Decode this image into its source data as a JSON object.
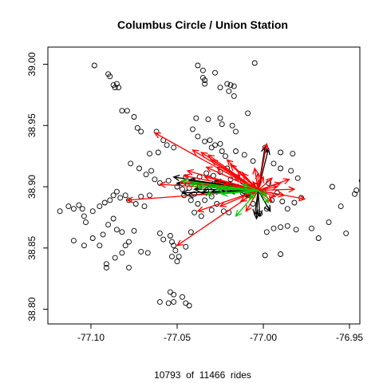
{
  "chart_data": {
    "type": "scatter",
    "title": "Columbus Circle / Union Station",
    "caption": "10793  of  11466  rides",
    "xlabel": "",
    "ylabel": "",
    "xlim": [
      -77.125,
      -76.944
    ],
    "ylim": [
      38.788,
      39.014
    ],
    "x_ticks": [
      -77.1,
      -77.05,
      -77.0,
      -76.95
    ],
    "x_tick_labels": [
      "-77.10",
      "-77.05",
      "-77.00",
      "-76.95"
    ],
    "y_ticks": [
      38.8,
      38.85,
      38.9,
      38.95,
      39.0
    ],
    "y_tick_labels": [
      "38.80",
      "38.85",
      "38.90",
      "38.95",
      "39.00"
    ],
    "grid": false,
    "legend": "none",
    "origin": {
      "x": -77.003,
      "y": 38.897
    },
    "colors": {
      "stations": "#000000",
      "black_arrows": "#000000",
      "red_arrows": "#ff0000",
      "green_arrows": "#00cc00",
      "frame": "#000000"
    },
    "stations": [
      [
        -77.098,
        38.999
      ],
      [
        -77.09,
        38.992
      ],
      [
        -77.089,
        38.99
      ],
      [
        -77.087,
        38.983
      ],
      [
        -77.086,
        38.981
      ],
      [
        -77.085,
        38.984
      ],
      [
        -77.084,
        38.981
      ],
      [
        -77.082,
        38.962
      ],
      [
        -77.079,
        38.962
      ],
      [
        -77.075,
        38.957
      ],
      [
        -77.073,
        38.948
      ],
      [
        -77.071,
        38.945
      ],
      [
        -77.038,
        38.999
      ],
      [
        -77.035,
        38.995
      ],
      [
        -77.035,
        38.989
      ],
      [
        -77.034,
        38.987
      ],
      [
        -77.034,
        38.984
      ],
      [
        -77.028,
        38.993
      ],
      [
        -77.025,
        38.981
      ],
      [
        -77.021,
        38.984
      ],
      [
        -77.019,
        38.983
      ],
      [
        -77.017,
        38.982
      ],
      [
        -77.005,
        39.001
      ],
      [
        -77.02,
        38.978
      ],
      [
        -77.017,
        38.974
      ],
      [
        -77.039,
        38.956
      ],
      [
        -77.032,
        38.955
      ],
      [
        -77.025,
        38.956
      ],
      [
        -77.024,
        38.951
      ],
      [
        -77.018,
        38.95
      ],
      [
        -77.016,
        38.945
      ],
      [
        -77.009,
        38.96
      ],
      [
        -77.062,
        38.945
      ],
      [
        -77.058,
        38.938
      ],
      [
        -77.056,
        38.934
      ],
      [
        -77.052,
        38.932
      ],
      [
        -77.066,
        38.927
      ],
      [
        -77.061,
        38.928
      ],
      [
        -77.041,
        38.947
      ],
      [
        -77.038,
        38.941
      ],
      [
        -77.034,
        38.937
      ],
      [
        -77.031,
        38.938
      ],
      [
        -77.028,
        38.934
      ],
      [
        -77.03,
        38.932
      ],
      [
        -77.025,
        38.935
      ],
      [
        -77.024,
        38.929
      ],
      [
        -77.022,
        38.925
      ],
      [
        -77.016,
        38.929
      ],
      [
        -77.011,
        38.926
      ],
      [
        -77.006,
        38.921
      ],
      [
        -76.999,
        38.932
      ],
      [
        -76.99,
        38.928
      ],
      [
        -76.983,
        38.927
      ],
      [
        -76.994,
        38.919
      ],
      [
        -76.99,
        38.915
      ],
      [
        -76.984,
        38.913
      ],
      [
        -76.98,
        38.907
      ],
      [
        -77.077,
        38.919
      ],
      [
        -77.072,
        38.915
      ],
      [
        -77.068,
        38.91
      ],
      [
        -77.065,
        38.913
      ],
      [
        -77.063,
        38.906
      ],
      [
        -77.06,
        38.903
      ],
      [
        -77.055,
        38.905
      ],
      [
        -77.05,
        38.9
      ],
      [
        -77.047,
        38.898
      ],
      [
        -77.043,
        38.899
      ],
      [
        -77.04,
        38.894
      ],
      [
        -77.037,
        38.9
      ],
      [
        -77.033,
        38.897
      ],
      [
        -77.029,
        38.902
      ],
      [
        -77.026,
        38.903
      ],
      [
        -77.022,
        38.898
      ],
      [
        -77.019,
        38.906
      ],
      [
        -77.015,
        38.9
      ],
      [
        -77.012,
        38.904
      ],
      [
        -77.009,
        38.893
      ],
      [
        -77.006,
        38.886
      ],
      [
        -77.002,
        38.878
      ],
      [
        -76.998,
        38.882
      ],
      [
        -76.995,
        38.889
      ],
      [
        -76.992,
        38.895
      ],
      [
        -76.989,
        38.888
      ],
      [
        -76.986,
        38.882
      ],
      [
        -76.982,
        38.887
      ],
      [
        -76.978,
        38.891
      ],
      [
        -76.96,
        38.9
      ],
      [
        -76.955,
        38.884
      ],
      [
        -76.952,
        38.862
      ],
      [
        -76.962,
        38.871
      ],
      [
        -76.968,
        38.858
      ],
      [
        -76.947,
        38.894
      ],
      [
        -76.946,
        38.897
      ],
      [
        -76.943,
        38.905
      ],
      [
        -76.972,
        38.866
      ],
      [
        -77.118,
        38.88
      ],
      [
        -77.113,
        38.884
      ],
      [
        -77.11,
        38.882
      ],
      [
        -77.107,
        38.885
      ],
      [
        -77.105,
        38.882
      ],
      [
        -77.104,
        38.876
      ],
      [
        -77.103,
        38.871
      ],
      [
        -77.099,
        38.88
      ],
      [
        -77.095,
        38.884
      ],
      [
        -77.092,
        38.887
      ],
      [
        -77.089,
        38.889
      ],
      [
        -77.087,
        38.893
      ],
      [
        -77.085,
        38.896
      ],
      [
        -77.083,
        38.891
      ],
      [
        -77.08,
        38.893
      ],
      [
        -77.078,
        38.889
      ],
      [
        -77.074,
        38.886
      ],
      [
        -77.071,
        38.892
      ],
      [
        -77.069,
        38.884
      ],
      [
        -77.066,
        38.893
      ],
      [
        -77.11,
        38.856
      ],
      [
        -77.104,
        38.852
      ],
      [
        -77.099,
        38.858
      ],
      [
        -77.095,
        38.852
      ],
      [
        -77.093,
        38.861
      ],
      [
        -77.09,
        38.869
      ],
      [
        -77.087,
        38.874
      ],
      [
        -77.085,
        38.865
      ],
      [
        -77.082,
        38.863
      ],
      [
        -77.08,
        38.852
      ],
      [
        -77.078,
        38.855
      ],
      [
        -77.075,
        38.864
      ],
      [
        -77.071,
        38.847
      ],
      [
        -77.067,
        38.846
      ],
      [
        -77.091,
        38.837
      ],
      [
        -77.091,
        38.834
      ],
      [
        -77.086,
        38.842
      ],
      [
        -77.082,
        38.846
      ],
      [
        -77.078,
        38.834
      ],
      [
        -77.06,
        38.862
      ],
      [
        -77.058,
        38.857
      ],
      [
        -77.054,
        38.86
      ],
      [
        -77.053,
        38.855
      ],
      [
        -77.052,
        38.852
      ],
      [
        -77.051,
        38.848
      ],
      [
        -77.053,
        38.843
      ],
      [
        -77.05,
        38.839
      ],
      [
        -77.049,
        38.843
      ],
      [
        -77.045,
        38.851
      ],
      [
        -77.042,
        38.863
      ],
      [
        -77.054,
        38.814
      ],
      [
        -77.052,
        38.812
      ],
      [
        -77.047,
        38.81
      ],
      [
        -77.045,
        38.805
      ],
      [
        -77.043,
        38.803
      ],
      [
        -77.055,
        38.805
      ],
      [
        -77.06,
        38.806
      ],
      [
        -77.052,
        38.806
      ],
      [
        -77.04,
        38.879
      ],
      [
        -77.036,
        38.876
      ],
      [
        -77.03,
        38.881
      ],
      [
        -77.027,
        38.886
      ],
      [
        -77.023,
        38.88
      ],
      [
        -77.02,
        38.879
      ],
      [
        -76.998,
        38.863
      ],
      [
        -76.994,
        38.866
      ],
      [
        -76.99,
        38.867
      ],
      [
        -76.986,
        38.868
      ],
      [
        -76.981,
        38.865
      ],
      [
        -76.999,
        38.844
      ],
      [
        -76.99,
        38.845
      ],
      [
        -77.012,
        38.895
      ],
      [
        -77.008,
        38.897
      ],
      [
        -77.004,
        38.901
      ],
      [
        -77.0,
        38.896
      ],
      [
        -76.997,
        38.903
      ],
      [
        -77.015,
        38.907
      ],
      [
        -77.045,
        38.908
      ],
      [
        -77.041,
        38.905
      ],
      [
        -77.037,
        38.908
      ],
      [
        -77.033,
        38.911
      ],
      [
        -77.029,
        38.909
      ],
      [
        -77.025,
        38.912
      ],
      [
        -77.021,
        38.915
      ],
      [
        -77.046,
        38.893
      ],
      [
        -77.042,
        38.889
      ],
      [
        -77.038,
        38.886
      ],
      [
        -77.034,
        38.889
      ],
      [
        -77.03,
        38.892
      ]
    ],
    "red_trips": [
      [
        -77.063,
        38.944
      ],
      [
        -77.06,
        38.902
      ],
      [
        -77.05,
        38.852
      ],
      [
        -77.079,
        38.889
      ],
      [
        -77.038,
        38.88
      ],
      [
        -77.041,
        38.93
      ],
      [
        -76.998,
        38.935
      ],
      [
        -76.976,
        38.89
      ],
      [
        -76.985,
        38.906
      ],
      [
        -76.988,
        38.893
      ],
      [
        -76.982,
        38.898
      ],
      [
        -77.025,
        38.884
      ],
      [
        -77.023,
        38.902
      ],
      [
        -77.027,
        38.916
      ],
      [
        -77.03,
        38.922
      ],
      [
        -77.032,
        38.926
      ],
      [
        -77.036,
        38.928
      ],
      [
        -77.019,
        38.918
      ],
      [
        -77.017,
        38.91
      ],
      [
        -77.015,
        38.913
      ],
      [
        -77.012,
        38.911
      ],
      [
        -77.005,
        38.915
      ],
      [
        -77.006,
        38.904
      ],
      [
        -77.013,
        38.888
      ],
      [
        -77.01,
        38.88
      ],
      [
        -76.995,
        38.888
      ],
      [
        -76.993,
        38.892
      ],
      [
        -76.992,
        38.9
      ],
      [
        -76.99,
        38.903
      ],
      [
        -76.995,
        38.907
      ],
      [
        -77.0,
        38.908
      ],
      [
        -77.003,
        38.911
      ],
      [
        -77.048,
        38.904
      ],
      [
        -77.046,
        38.909
      ],
      [
        -77.044,
        38.913
      ],
      [
        -77.034,
        38.908
      ],
      [
        -77.033,
        38.916
      ],
      [
        -77.021,
        38.922
      ]
    ],
    "black_trips": [
      [
        -77.052,
        38.908
      ],
      [
        -77.05,
        38.903
      ],
      [
        -77.047,
        38.895
      ],
      [
        -77.044,
        38.893
      ],
      [
        -77.04,
        38.898
      ],
      [
        -77.036,
        38.895
      ],
      [
        -77.033,
        38.901
      ],
      [
        -77.03,
        38.896
      ],
      [
        -77.026,
        38.899
      ],
      [
        -77.022,
        38.903
      ],
      [
        -77.018,
        38.9
      ],
      [
        -77.014,
        38.896
      ],
      [
        -77.01,
        38.892
      ],
      [
        -77.005,
        38.877
      ],
      [
        -77.004,
        38.874
      ],
      [
        -76.999,
        38.933
      ],
      [
        -76.997,
        38.931
      ],
      [
        -76.996,
        38.88
      ],
      [
        -77.002,
        38.876
      ],
      [
        -77.043,
        38.905
      ],
      [
        -77.038,
        38.902
      ],
      [
        -77.028,
        38.905
      ],
      [
        -77.02,
        38.896
      ]
    ],
    "green_trips": [
      [
        -77.047,
        38.905
      ],
      [
        -77.042,
        38.902
      ],
      [
        -77.033,
        38.894
      ],
      [
        -77.027,
        38.898
      ],
      [
        -77.016,
        38.876
      ],
      [
        -77.012,
        38.902
      ],
      [
        -77.01,
        38.895
      ],
      [
        -77.008,
        38.89
      ],
      [
        -76.998,
        38.893
      ],
      [
        -76.997,
        38.887
      ],
      [
        -77.038,
        38.9
      ],
      [
        -77.024,
        38.894
      ]
    ]
  }
}
